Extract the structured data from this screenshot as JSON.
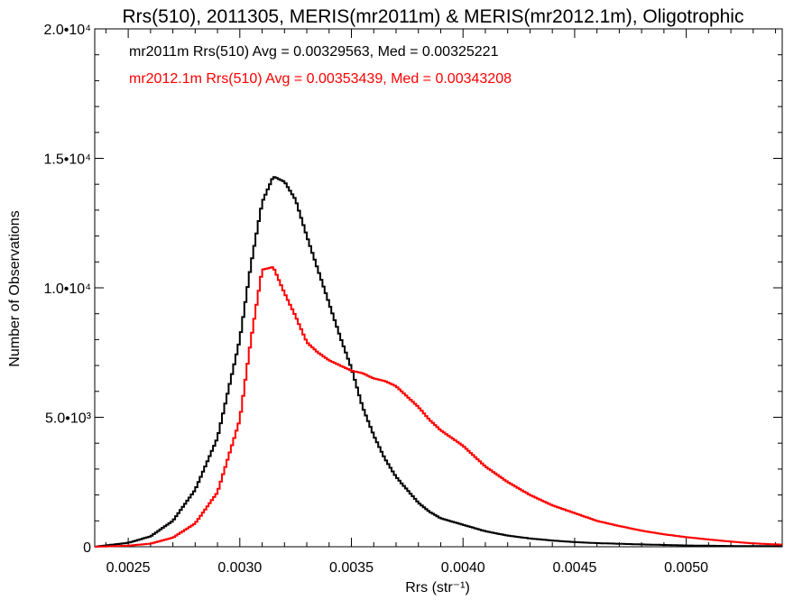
{
  "chart_data": {
    "type": "line",
    "title": "Rrs(510), 2011305, MERIS(mr2011m) & MERIS(mr2012.1m), Oligotrophic",
    "xlabel": "Rrs (str⁻¹)",
    "ylabel": "Number of Observations",
    "xlim": [
      0.00235,
      0.00543
    ],
    "ylim": [
      0,
      20000
    ],
    "x_tick_labels": [
      "0.0025",
      "0.0030",
      "0.0035",
      "0.0040",
      "0.0045",
      "0.0050"
    ],
    "x_tick_values": [
      0.0025,
      0.003,
      0.0035,
      0.004,
      0.0045,
      0.005
    ],
    "y_tick_labels": [
      "0",
      "5.0•10³",
      "1.0•10⁴",
      "1.5•10⁴",
      "2.0•10⁴"
    ],
    "y_tick_values": [
      0,
      5000,
      10000,
      15000,
      20000
    ],
    "grid": false,
    "legend_position": "top-left",
    "step_style": "histogram-steps",
    "series": [
      {
        "name": "mr2011m",
        "annotation": "mr2011m Rrs(510) Avg = 0.00329563, Med = 0.00325221",
        "color": "#000000",
        "x": [
          0.00235,
          0.0025,
          0.0026,
          0.0027,
          0.0028,
          0.0029,
          0.003,
          0.00305,
          0.0031,
          0.00315,
          0.0032,
          0.00325,
          0.0033,
          0.00335,
          0.0034,
          0.00345,
          0.0035,
          0.00355,
          0.0036,
          0.00365,
          0.0037,
          0.00375,
          0.0038,
          0.00385,
          0.0039,
          0.004,
          0.0041,
          0.0042,
          0.0043,
          0.0044,
          0.0045,
          0.0046,
          0.0048,
          0.005,
          0.0052,
          0.00543
        ],
        "values": [
          0,
          150,
          400,
          1000,
          2200,
          4200,
          8000,
          10900,
          13300,
          14300,
          14100,
          13400,
          12000,
          10700,
          9400,
          8100,
          6900,
          5400,
          4300,
          3400,
          2700,
          2200,
          1700,
          1350,
          1100,
          850,
          600,
          430,
          320,
          240,
          180,
          140,
          90,
          50,
          30,
          20
        ]
      },
      {
        "name": "mr2012.1m",
        "annotation": "mr2012.1m Rrs(510) Avg = 0.00353439, Med = 0.00343208",
        "color": "#ff0000",
        "x": [
          0.00235,
          0.0025,
          0.0026,
          0.0027,
          0.0028,
          0.0029,
          0.003,
          0.00305,
          0.0031,
          0.00315,
          0.0032,
          0.00325,
          0.0033,
          0.00335,
          0.0034,
          0.00345,
          0.0035,
          0.00355,
          0.0036,
          0.00365,
          0.0037,
          0.00375,
          0.0038,
          0.00385,
          0.0039,
          0.004,
          0.0041,
          0.0042,
          0.0043,
          0.0044,
          0.0045,
          0.0046,
          0.0047,
          0.0048,
          0.0049,
          0.005,
          0.0051,
          0.0052,
          0.0053,
          0.00543
        ],
        "values": [
          0,
          40,
          120,
          350,
          900,
          2100,
          4900,
          8000,
          10700,
          10800,
          9800,
          8900,
          7900,
          7500,
          7200,
          7000,
          6800,
          6700,
          6500,
          6400,
          6200,
          5800,
          5400,
          4900,
          4500,
          3900,
          3100,
          2500,
          2000,
          1600,
          1300,
          1000,
          800,
          620,
          480,
          370,
          280,
          200,
          130,
          80
        ]
      }
    ]
  }
}
